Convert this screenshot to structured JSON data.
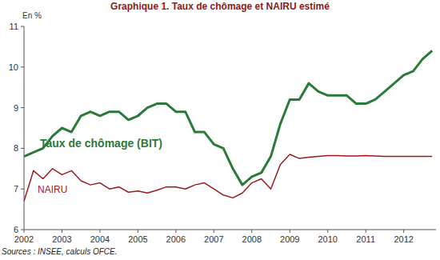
{
  "chart_data": {
    "type": "line",
    "title": "Graphique 1. Taux de chômage et NAIRU estimé",
    "y_label": "En %",
    "source": "Sources : INSEE, calculs OFCE.",
    "x": [
      2002,
      2002.25,
      2002.5,
      2002.75,
      2003,
      2003.25,
      2003.5,
      2003.75,
      2004,
      2004.25,
      2004.5,
      2004.75,
      2005,
      2005.25,
      2005.5,
      2005.75,
      2006,
      2006.25,
      2006.5,
      2006.75,
      2007,
      2007.25,
      2007.5,
      2007.75,
      2008,
      2008.25,
      2008.5,
      2008.75,
      2009,
      2009.25,
      2009.5,
      2009.75,
      2010,
      2010.25,
      2010.5,
      2010.75,
      2011,
      2011.25,
      2011.5,
      2011.75,
      2012,
      2012.25,
      2012.5,
      2012.75
    ],
    "series": [
      {
        "name": "Taux de chômage (BIT)",
        "color": "#2a7a3a",
        "values": [
          7.8,
          7.9,
          8.0,
          8.3,
          8.5,
          8.4,
          8.8,
          8.9,
          8.8,
          8.9,
          8.9,
          8.7,
          8.8,
          9.0,
          9.1,
          9.1,
          8.9,
          8.9,
          8.4,
          8.4,
          8.1,
          8.0,
          7.5,
          7.1,
          7.3,
          7.4,
          7.8,
          8.6,
          9.2,
          9.2,
          9.6,
          9.4,
          9.3,
          9.3,
          9.3,
          9.1,
          9.1,
          9.2,
          9.4,
          9.6,
          9.8,
          9.9,
          10.2,
          10.4
        ]
      },
      {
        "name": "NAIRU",
        "color": "#9b1c1c",
        "values": [
          6.7,
          7.45,
          7.25,
          7.5,
          7.35,
          7.45,
          7.2,
          7.1,
          7.15,
          7.0,
          7.05,
          6.92,
          6.95,
          6.9,
          6.97,
          7.05,
          7.05,
          7.0,
          7.1,
          7.15,
          7.0,
          6.85,
          6.78,
          6.9,
          7.15,
          7.25,
          7.0,
          7.6,
          7.85,
          7.75,
          7.78,
          7.8,
          7.82,
          7.82,
          7.81,
          7.81,
          7.82,
          7.81,
          7.8,
          7.8,
          7.8,
          7.8,
          7.8,
          7.8
        ]
      }
    ],
    "xlim": [
      2002,
      2012.85
    ],
    "xticks": [
      2002,
      2003,
      2004,
      2005,
      2006,
      2007,
      2008,
      2009,
      2010,
      2011,
      2012
    ],
    "ylim": [
      6,
      11
    ],
    "yticks": [
      6,
      7,
      8,
      9,
      10,
      11
    ],
    "grid": false
  }
}
